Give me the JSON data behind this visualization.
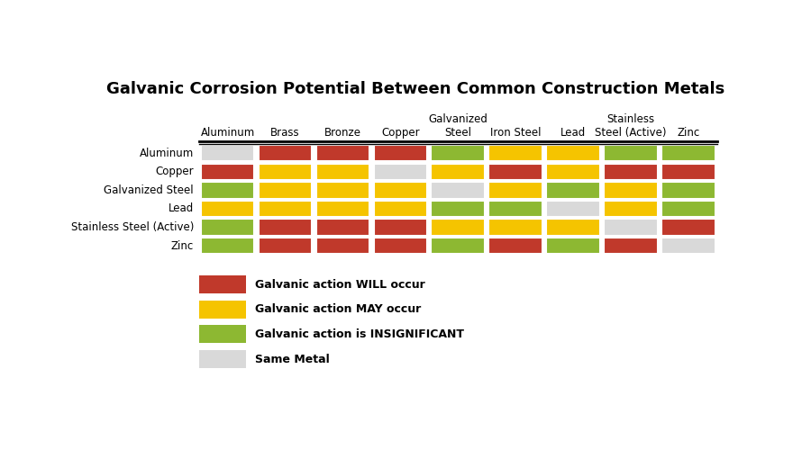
{
  "title": "Galvanic Corrosion Potential Between Common Construction Metals",
  "col_labels": [
    "Aluminum",
    "Brass",
    "Bronze",
    "Copper",
    "Galvanized\nSteel",
    "Iron Steel",
    "Lead",
    "Stainless\nSteel (Active)",
    "Zinc"
  ],
  "row_labels": [
    "Aluminum",
    "Copper",
    "Galvanized Steel",
    "Lead",
    "Stainless Steel (Active)",
    "Zinc"
  ],
  "colors": {
    "W": "#C0392B",
    "M": "#F5C400",
    "I": "#8DB832",
    "S": "#D9D9D9"
  },
  "matrix": [
    [
      "S",
      "W",
      "W",
      "W",
      "I",
      "M",
      "M",
      "I",
      "I"
    ],
    [
      "W",
      "M",
      "M",
      "S",
      "M",
      "W",
      "M",
      "W",
      "W"
    ],
    [
      "I",
      "M",
      "M",
      "M",
      "S",
      "M",
      "I",
      "M",
      "I"
    ],
    [
      "M",
      "M",
      "M",
      "M",
      "I",
      "I",
      "S",
      "M",
      "I"
    ],
    [
      "I",
      "W",
      "W",
      "W",
      "M",
      "M",
      "M",
      "S",
      "W"
    ],
    [
      "I",
      "W",
      "W",
      "W",
      "I",
      "W",
      "I",
      "W",
      "S"
    ]
  ],
  "legend_labels": [
    "Galvanic action WILL occur",
    "Galvanic action MAY occur",
    "Galvanic action is INSIGNIFICANT",
    "Same Metal"
  ],
  "legend_colors": [
    "#C0392B",
    "#F5C400",
    "#8DB832",
    "#D9D9D9"
  ],
  "background_color": "#FFFFFF",
  "title_fontsize": 13,
  "label_fontsize": 8.5
}
